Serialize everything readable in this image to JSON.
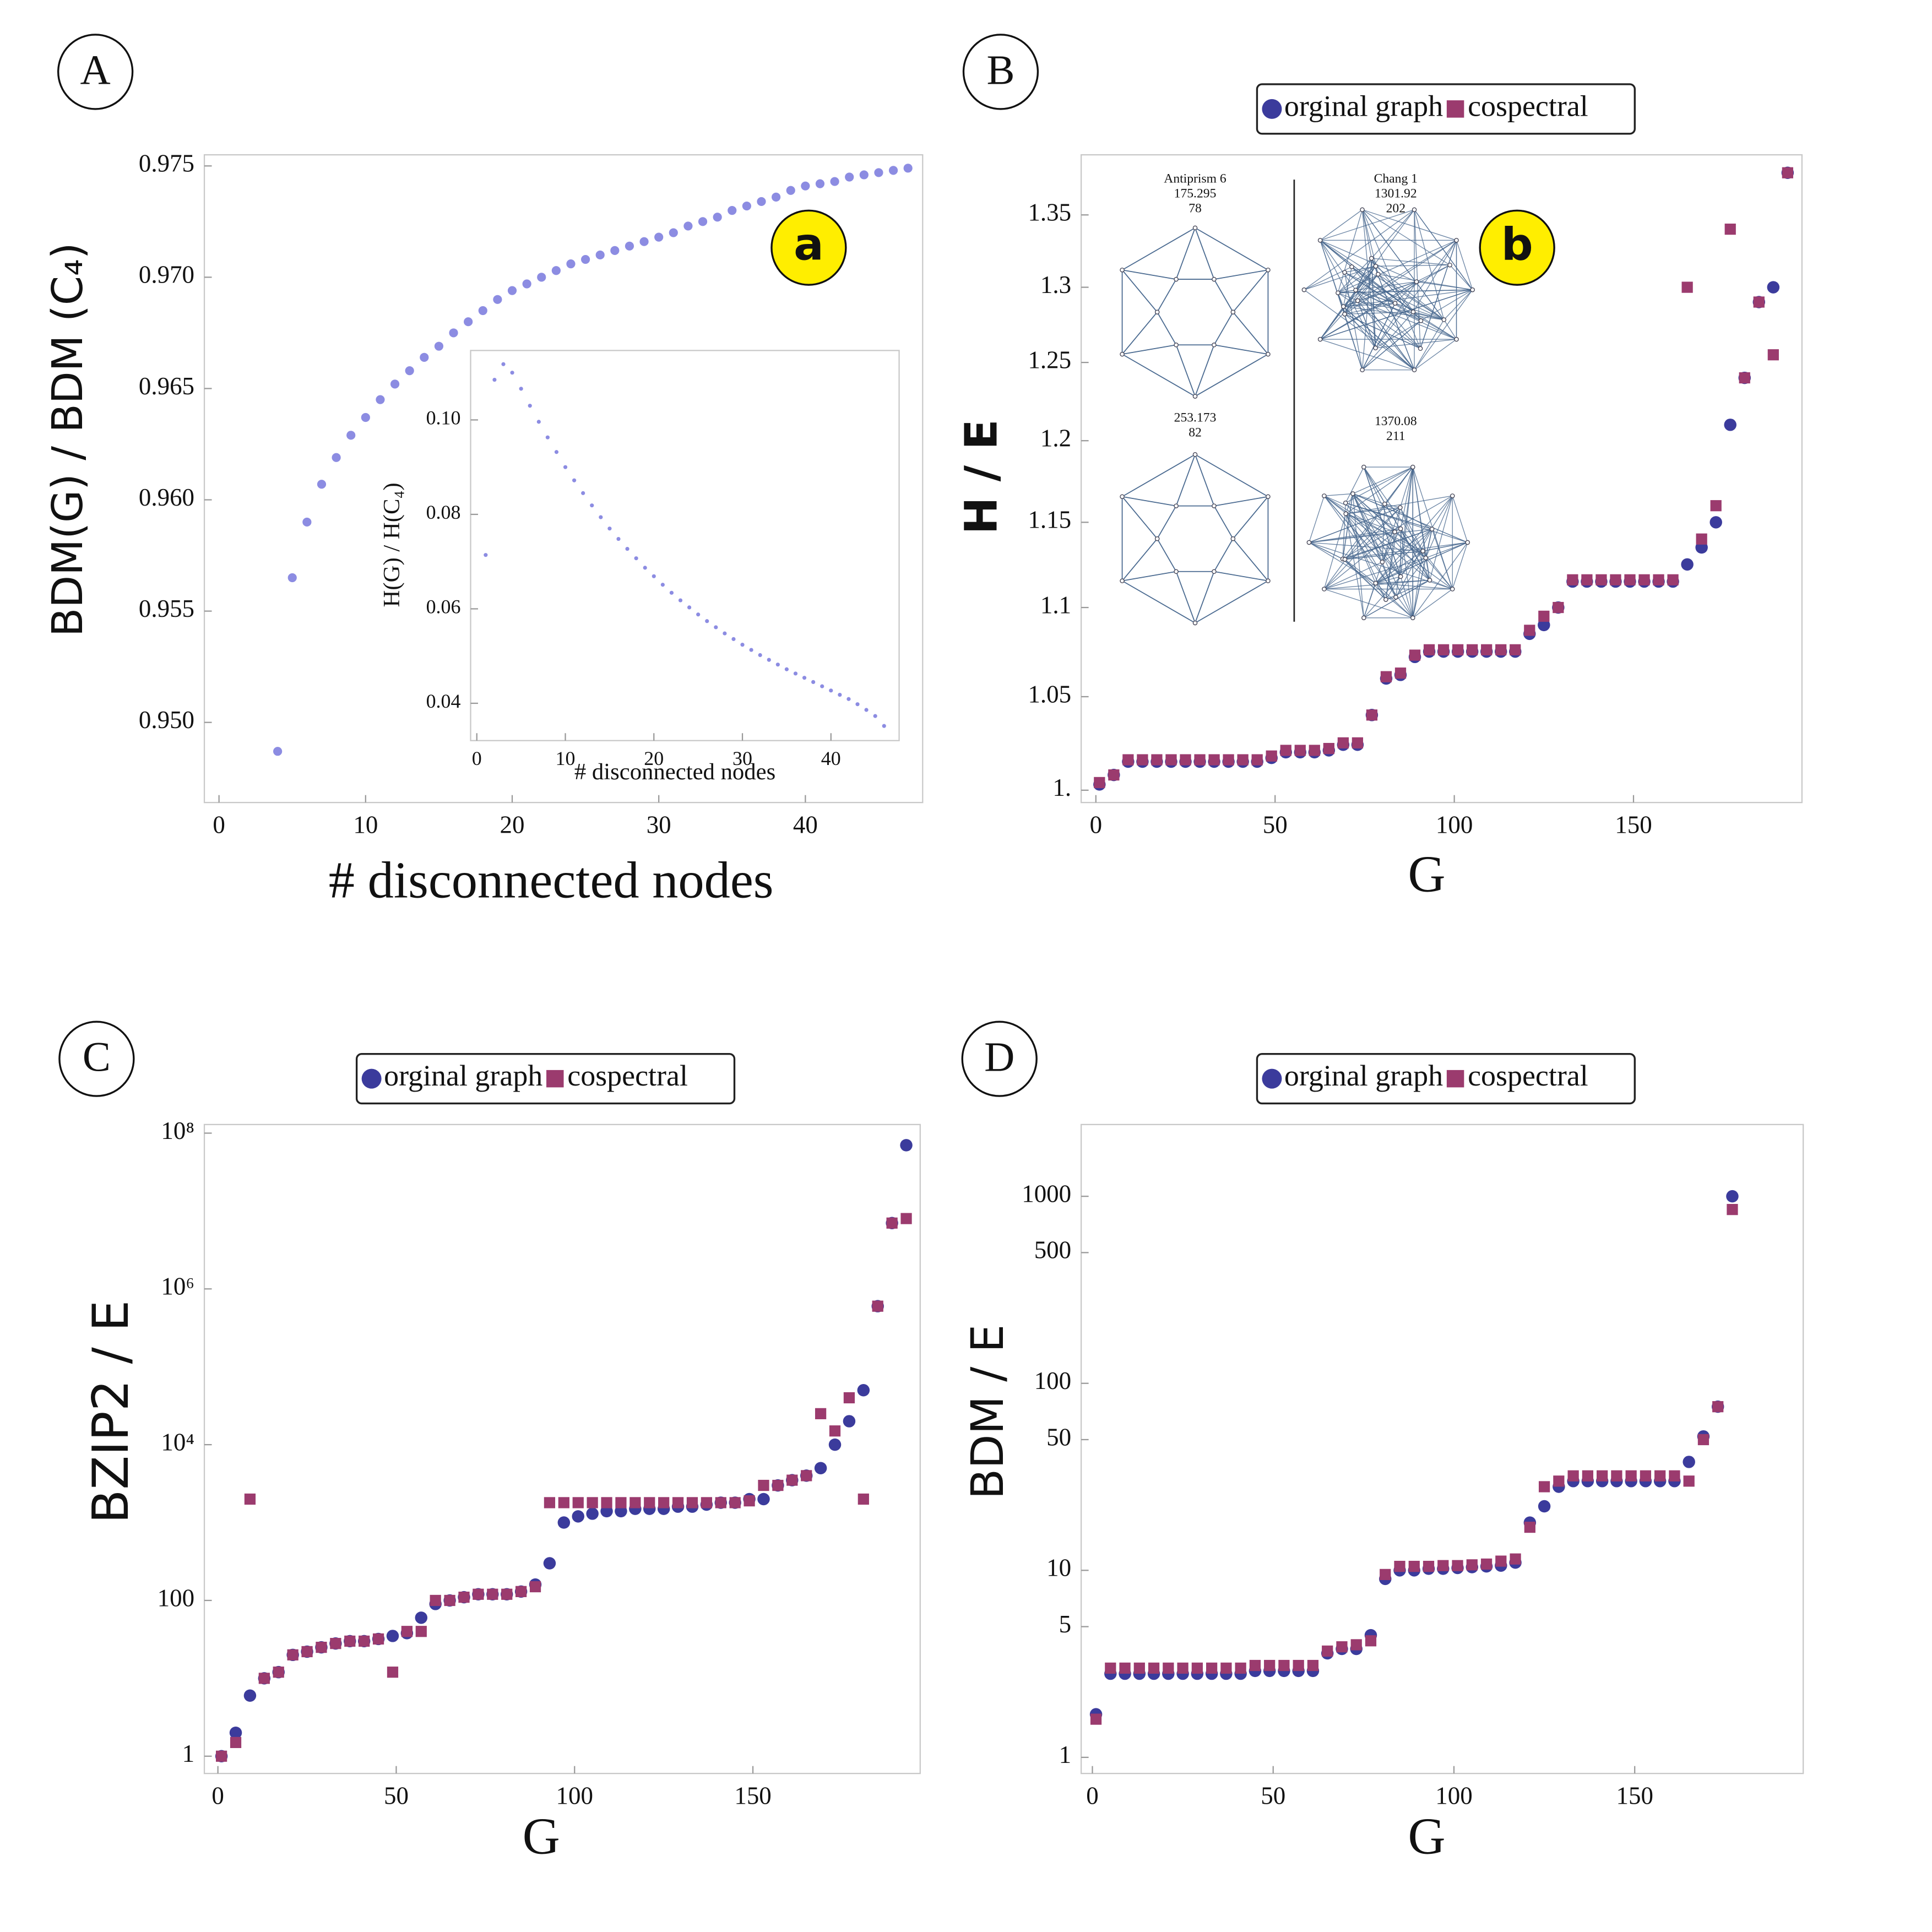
{
  "chart_data": [
    {
      "type": "scatter",
      "panel_label": "A",
      "annotation": "a",
      "x_label": "# disconnected nodes",
      "y_label": "BDM(G) / BDM (C₄)",
      "x": [
        4,
        5,
        6,
        7,
        8,
        9,
        10,
        11,
        12,
        13,
        14,
        15,
        16,
        17,
        18,
        19,
        20,
        21,
        22,
        23,
        24,
        25,
        26,
        27,
        28,
        29,
        30,
        31,
        32,
        33,
        34,
        35,
        36,
        37,
        38,
        39,
        40,
        41,
        42,
        43,
        44,
        45,
        46,
        47
      ],
      "values": [
        0.9487,
        0.9565,
        0.959,
        0.9607,
        0.9619,
        0.9629,
        0.9637,
        0.9645,
        0.9652,
        0.9658,
        0.9664,
        0.9669,
        0.9675,
        0.968,
        0.9685,
        0.969,
        0.9694,
        0.9697,
        0.97,
        0.9703,
        0.9706,
        0.9708,
        0.971,
        0.9712,
        0.9714,
        0.9716,
        0.9718,
        0.972,
        0.9723,
        0.9725,
        0.9727,
        0.973,
        0.9732,
        0.9734,
        0.9736,
        0.9739,
        0.9741,
        0.9742,
        0.9743,
        0.9745,
        0.9746,
        0.9747,
        0.9748,
        0.9749
      ],
      "color": "#8c8ce2",
      "xlim": [
        -1,
        48
      ],
      "ylim": [
        0.9464,
        0.9755
      ],
      "xticks": [
        0,
        10,
        20,
        30,
        40
      ],
      "yticks": [
        {
          "value": 0.95,
          "label": "0.950"
        },
        0.955,
        {
          "value": 0.96,
          "label": "0.960"
        },
        0.965,
        {
          "value": 0.97,
          "label": "0.970"
        },
        0.975
      ]
    },
    {
      "type": "scatter",
      "x_label": "# disconnected nodes",
      "y_label": "H(G) / H(C₄)",
      "x": [
        1,
        2,
        3,
        4,
        5,
        6,
        7,
        8,
        9,
        10,
        11,
        12,
        13,
        14,
        15,
        16,
        17,
        18,
        19,
        20,
        21,
        22,
        23,
        24,
        25,
        26,
        27,
        28,
        29,
        30,
        31,
        32,
        33,
        34,
        35,
        36,
        37,
        38,
        39,
        40,
        41,
        42,
        43,
        44,
        45,
        46
      ],
      "values": [
        0.0714,
        0.1085,
        0.1118,
        0.11,
        0.1066,
        0.103,
        0.0996,
        0.0963,
        0.0932,
        0.09,
        0.0872,
        0.0845,
        0.0819,
        0.0794,
        0.077,
        0.0748,
        0.0727,
        0.0707,
        0.0687,
        0.0669,
        0.0651,
        0.0634,
        0.0618,
        0.0603,
        0.0588,
        0.0574,
        0.0561,
        0.0548,
        0.0536,
        0.0524,
        0.0513,
        0.0502,
        0.0492,
        0.0482,
        0.0472,
        0.0463,
        0.0454,
        0.0445,
        0.0436,
        0.0427,
        0.0418,
        0.0409,
        0.0398,
        0.0386,
        0.0373,
        0.0352
      ],
      "color": "#8c8ce2",
      "xlim": [
        -0.7,
        47.7
      ],
      "ylim": [
        0.0321,
        0.1147
      ],
      "xticks": [
        0,
        10,
        20,
        30,
        40
      ],
      "yticks": [
        0.04,
        0.06,
        0.08,
        {
          "value": 0.1,
          "label": "0.10"
        }
      ]
    },
    {
      "type": "scatter",
      "panel_label": "B",
      "annotation": "b",
      "x_label": "G",
      "y_label": "H / E",
      "log_y": true,
      "graph_labels": [
        [
          "Antiprism   6",
          "175.295",
          "78"
        ],
        [
          "Chang   1",
          "1301.92",
          "202"
        ],
        [
          "253.173",
          "82"
        ],
        [
          "1370.08",
          "211"
        ]
      ],
      "x": [
        1,
        5,
        9,
        13,
        17,
        21,
        25,
        29,
        33,
        37,
        41,
        45,
        49,
        53,
        57,
        61,
        65,
        69,
        73,
        77,
        81,
        85,
        89,
        93,
        97,
        101,
        105,
        109,
        113,
        117,
        121,
        125,
        129,
        133,
        137,
        141,
        145,
        149,
        153,
        157,
        161,
        165,
        169,
        173,
        177,
        181,
        185,
        189,
        193
      ],
      "series": [
        {
          "name": "orginal graph",
          "color": "#3b3b9c",
          "marker": "circle",
          "values": [
            1.003,
            1.008,
            1.015,
            1.015,
            1.015,
            1.015,
            1.015,
            1.015,
            1.015,
            1.015,
            1.015,
            1.015,
            1.017,
            1.02,
            1.02,
            1.02,
            1.021,
            1.024,
            1.024,
            1.04,
            1.06,
            1.062,
            1.072,
            1.075,
            1.075,
            1.075,
            1.075,
            1.075,
            1.075,
            1.075,
            1.085,
            1.09,
            1.1,
            1.115,
            1.115,
            1.115,
            1.115,
            1.115,
            1.115,
            1.115,
            1.115,
            1.125,
            1.135,
            1.15,
            1.21,
            1.24,
            1.29,
            1.3,
            1.38
          ]
        },
        {
          "name": "cospectral",
          "color": "#9b3b6e",
          "marker": "square",
          "values": [
            1.004,
            1.008,
            1.016,
            1.016,
            1.016,
            1.016,
            1.016,
            1.016,
            1.016,
            1.016,
            1.016,
            1.016,
            1.018,
            1.021,
            1.021,
            1.021,
            1.022,
            1.025,
            1.025,
            1.04,
            1.061,
            1.063,
            1.073,
            1.076,
            1.076,
            1.076,
            1.076,
            1.076,
            1.076,
            1.076,
            1.087,
            1.095,
            1.1,
            1.116,
            1.116,
            1.116,
            1.116,
            1.116,
            1.116,
            1.116,
            1.116,
            1.3,
            1.14,
            1.16,
            1.34,
            1.24,
            1.29,
            1.255,
            1.38
          ]
        }
      ],
      "xlim": [
        -4.1,
        197
      ],
      "ylim": [
        0.9936,
        1.393
      ],
      "xticks": [
        0,
        50,
        100,
        150
      ],
      "yticks": [
        {
          "value": 1,
          "label": "1."
        },
        1.05,
        1.1,
        1.15,
        1.2,
        1.25,
        1.3,
        1.35
      ]
    },
    {
      "type": "scatter",
      "panel_label": "C",
      "x_label": "G",
      "y_label": "BZIP2 / E",
      "log_y": true,
      "x": [
        1,
        5,
        9,
        13,
        17,
        21,
        25,
        29,
        33,
        37,
        41,
        45,
        49,
        53,
        57,
        61,
        65,
        69,
        73,
        77,
        81,
        85,
        89,
        93,
        97,
        101,
        105,
        109,
        113,
        117,
        121,
        125,
        129,
        133,
        137,
        141,
        145,
        149,
        153,
        157,
        161,
        165,
        169,
        173,
        177,
        181,
        185,
        189,
        193
      ],
      "series": [
        {
          "name": "orginal graph",
          "color": "#3b3b9c",
          "marker": "circle",
          "values": [
            1,
            2,
            6,
            10,
            12,
            20,
            22,
            25,
            28,
            30,
            30,
            32,
            35,
            38,
            60,
            90,
            100,
            110,
            120,
            120,
            120,
            130,
            160,
            300,
            1000,
            1200,
            1300,
            1400,
            1400,
            1500,
            1500,
            1500,
            1600,
            1600,
            1700,
            1800,
            1800,
            2000,
            2000,
            3000,
            3500,
            4000,
            5000,
            10000,
            20000,
            50000,
            600000,
            7000000,
            70000000
          ]
        },
        {
          "name": "cospectral",
          "color": "#9b3b6e",
          "marker": "square",
          "values": [
            1,
            1.5,
            2000,
            10,
            12,
            20,
            22,
            25,
            28,
            30,
            30,
            32,
            12,
            40,
            40,
            100,
            100,
            110,
            120,
            120,
            120,
            130,
            150,
            1800,
            1800,
            1800,
            1800,
            1800,
            1800,
            1800,
            1800,
            1800,
            1800,
            1800,
            1800,
            1800,
            1800,
            1900,
            3000,
            3000,
            3500,
            4000,
            25000,
            15000,
            40000,
            2000,
            600000,
            7000000,
            8000000
          ]
        }
      ],
      "xlim": [
        -3.8,
        196.9
      ],
      "ylim": [
        0.6,
        129000000
      ],
      "xticks": [
        0,
        50,
        100,
        150
      ],
      "yticks": [
        1,
        100,
        {
          "value": 10000,
          "label": "10⁴"
        },
        {
          "value": 1000000,
          "label": "10⁶"
        },
        {
          "value": 100000000,
          "label": "10⁸"
        }
      ]
    },
    {
      "type": "scatter",
      "panel_label": "D",
      "x_label": "G",
      "y_label": "BDM / E",
      "log_y": true,
      "x": [
        1,
        5,
        9,
        13,
        17,
        21,
        25,
        29,
        33,
        37,
        41,
        45,
        49,
        53,
        57,
        61,
        65,
        69,
        73,
        77,
        81,
        85,
        89,
        93,
        97,
        101,
        105,
        109,
        113,
        117,
        121,
        125,
        129,
        133,
        137,
        141,
        145,
        149,
        153,
        157,
        161,
        165,
        169,
        173,
        177
      ],
      "series": [
        {
          "name": "orginal graph",
          "color": "#3b3b9c",
          "marker": "circle",
          "values": [
            1.7,
            2.8,
            2.8,
            2.8,
            2.8,
            2.8,
            2.8,
            2.8,
            2.8,
            2.8,
            2.8,
            2.9,
            2.9,
            2.9,
            2.9,
            2.9,
            3.6,
            3.8,
            3.8,
            4.5,
            9,
            10,
            10,
            10.2,
            10.2,
            10.3,
            10.4,
            10.5,
            10.6,
            11,
            18,
            22,
            28,
            30,
            30,
            30,
            30,
            30,
            30,
            30,
            30,
            38,
            52,
            75,
            1000
          ]
        },
        {
          "name": "cospectral",
          "color": "#9b3b6e",
          "marker": "square",
          "values": [
            1.6,
            3,
            3,
            3,
            3,
            3,
            3,
            3,
            3,
            3,
            3,
            3.1,
            3.1,
            3.1,
            3.1,
            3.1,
            3.7,
            3.9,
            4,
            4.2,
            9.5,
            10.5,
            10.5,
            10.5,
            10.6,
            10.6,
            10.7,
            10.8,
            11.2,
            11.5,
            17,
            28,
            30,
            32,
            32,
            32,
            32,
            32,
            32,
            32,
            32,
            30,
            50,
            75,
            850
          ]
        }
      ],
      "xlim": [
        -3.1,
        196.6
      ],
      "ylim": [
        0.82,
        2420
      ],
      "xticks": [
        0,
        50,
        100,
        150
      ],
      "yticks": [
        1,
        5,
        10,
        50,
        100,
        500,
        1000
      ]
    }
  ]
}
